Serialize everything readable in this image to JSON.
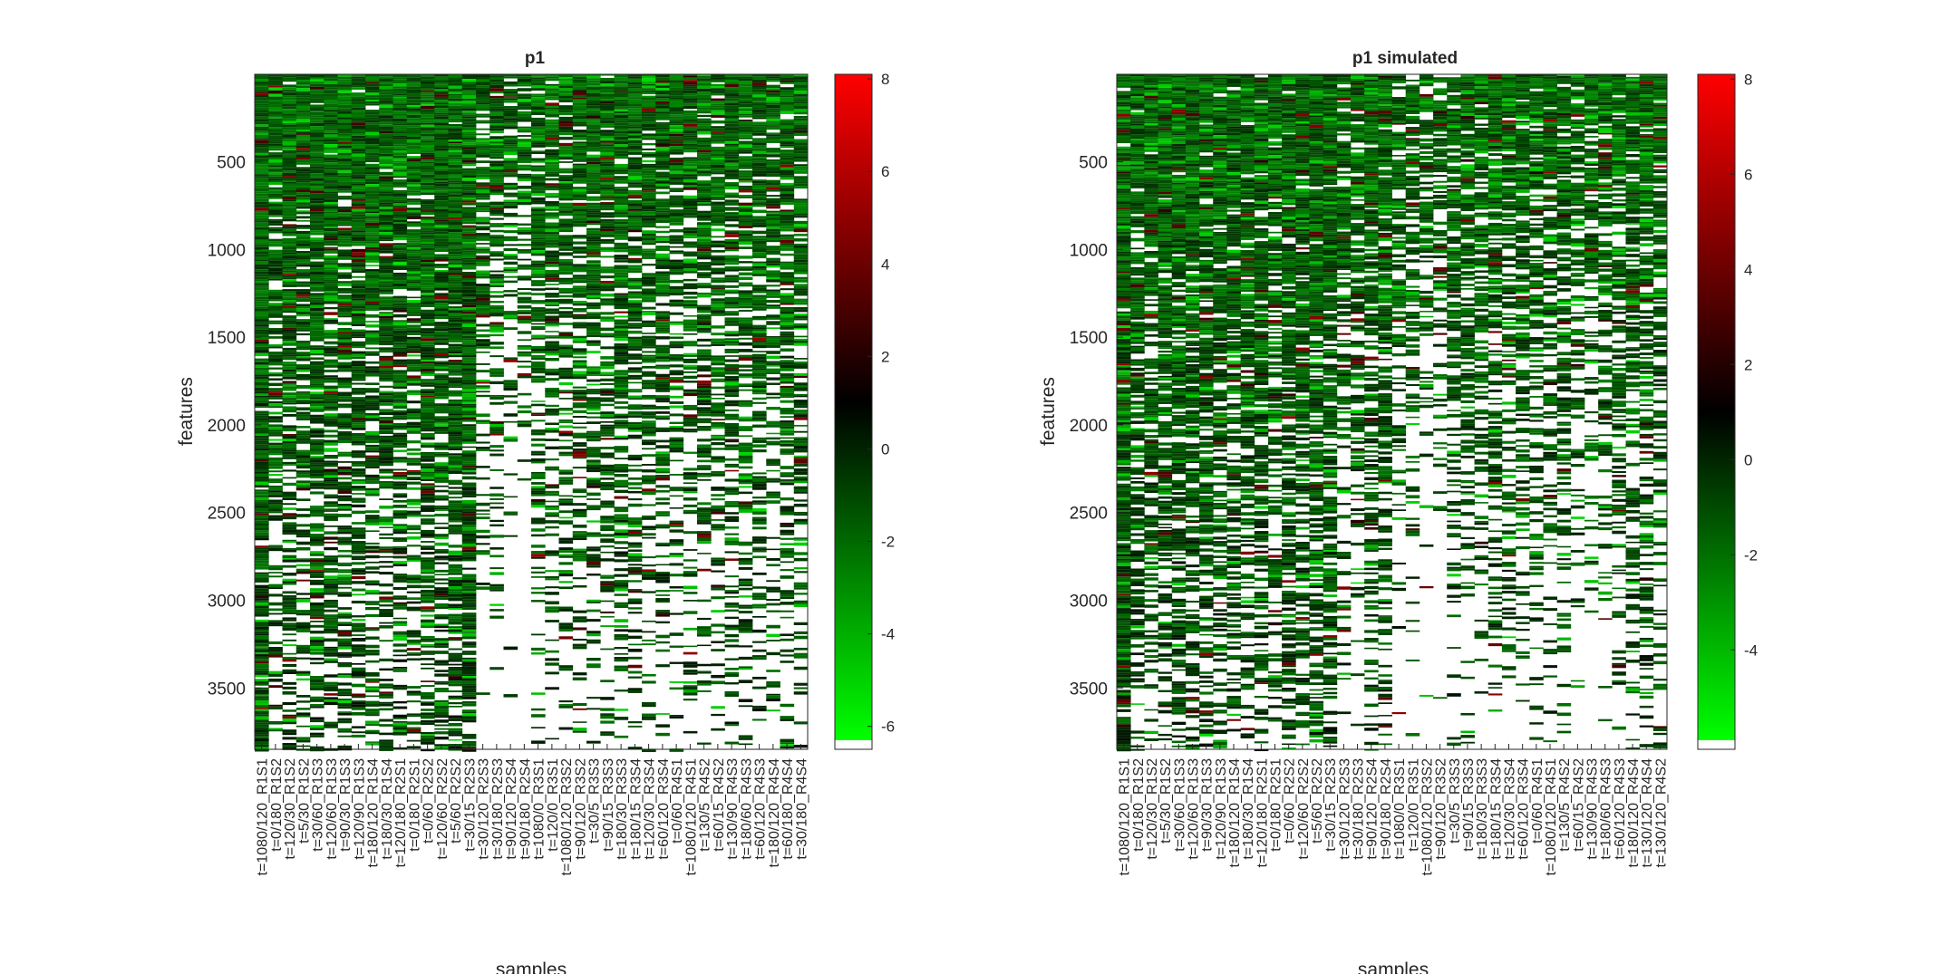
{
  "chart_data": [
    {
      "type": "heatmap",
      "title": "p1",
      "xlabel": "samples",
      "ylabel": "features",
      "y_ticks": [
        500,
        1000,
        1500,
        2000,
        2500,
        3000,
        3500
      ],
      "ylim": [
        1,
        3850
      ],
      "colorbar": {
        "ticks": [
          8,
          6,
          4,
          2,
          0,
          -2,
          -4,
          -6
        ],
        "range": [
          -6.3,
          8.1
        ],
        "colormap": [
          "#00ff00",
          "#000000",
          "#ff0000"
        ]
      },
      "missing_color": "#ffffff",
      "column_density_profile": [
        0.9,
        0.55,
        0.62,
        0.55,
        0.66,
        0.62,
        0.6,
        0.64,
        0.58,
        0.62,
        0.6,
        0.55,
        0.68,
        0.65,
        0.72,
        0.82,
        0.3,
        0.3,
        0.16,
        0.16,
        0.4,
        0.4,
        0.42,
        0.44,
        0.46,
        0.44,
        0.48,
        0.46,
        0.42,
        0.45,
        0.42,
        0.4,
        0.48,
        0.46,
        0.5,
        0.42,
        0.45,
        0.4,
        0.48,
        0.44
      ],
      "samples": [
        "t=1080/120_R1S1",
        "t=0/180_R1S2",
        "t=120/30_R1S2",
        "t=5/30_R1S2",
        "t=30/60_R1S3",
        "t=120/60_R1S3",
        "t=90/30_R1S3",
        "t=120/90_R1S3",
        "t=180/120_R1S4",
        "t=180/30_R1S4",
        "t=120/180_R2S1",
        "t=0/180_R2S1",
        "t=0/60_R2S2",
        "t=120/60_R2S2",
        "t=5/60_R2S2",
        "t=30/15_R2S3",
        "t=30/120_R2S3",
        "t=30/180_R2S3",
        "t=90/120_R2S4",
        "t=90/180_R2S4",
        "t=1080/0_R3S1",
        "t=120/0_R3S1",
        "t=1080/120_R3S2",
        "t=90/120_R3S2",
        "t=30/5_R3S3",
        "t=90/15_R3S3",
        "t=180/30_R3S3",
        "t=180/15_R3S4",
        "t=120/30_R3S4",
        "t=60/120_R3S4",
        "t=0/60_R4S1",
        "t=1080/120_R4S1",
        "t=130/5_R4S2",
        "t=60/15_R4S2",
        "t=130/90_R4S3",
        "t=180/60_R4S3",
        "t=60/120_R4S3",
        "t=180/120_R4S4",
        "t=60/180_R4S4",
        "t=30/180_R4S4"
      ]
    },
    {
      "type": "heatmap",
      "title": "p1 simulated",
      "xlabel": "samples",
      "ylabel": "features",
      "y_ticks": [
        500,
        1000,
        1500,
        2000,
        2500,
        3000,
        3500
      ],
      "ylim": [
        1,
        3850
      ],
      "colorbar": {
        "ticks": [
          8,
          6,
          4,
          2,
          0,
          -2,
          -4
        ],
        "range": [
          -5.9,
          8.1
        ],
        "colormap": [
          "#00ff00",
          "#000000",
          "#ff0000"
        ]
      },
      "missing_color": "#ffffff",
      "column_density_profile": [
        0.9,
        0.58,
        0.6,
        0.58,
        0.62,
        0.64,
        0.6,
        0.62,
        0.6,
        0.58,
        0.6,
        0.5,
        0.62,
        0.6,
        0.66,
        0.7,
        0.4,
        0.4,
        0.58,
        0.58,
        0.3,
        0.3,
        0.16,
        0.16,
        0.4,
        0.42,
        0.38,
        0.44,
        0.42,
        0.4,
        0.42,
        0.4,
        0.44,
        0.3,
        0.3,
        0.34,
        0.42,
        0.5,
        0.5,
        0.44
      ],
      "samples": [
        "t=1080/120_R1S1",
        "t=0/180_R1S2",
        "t=120/30_R1S2",
        "t=5/30_R1S2",
        "t=30/60_R1S3",
        "t=120/60_R1S3",
        "t=90/30_R1S3",
        "t=120/90_R1S3",
        "t=180/120_R1S4",
        "t=180/30_R1S4",
        "t=120/180_R2S1",
        "t=0/180_R2S1",
        "t=0/60_R2S2",
        "t=120/60_R2S2",
        "t=5/60_R2S2",
        "t=30/15_R2S3",
        "t=30/120_R2S3",
        "t=30/180_R2S3",
        "t=90/120_R2S4",
        "t=90/180_R2S4",
        "t=1080/0_R3S1",
        "t=120/0_R3S1",
        "t=1080/120_R3S2",
        "t=90/120_R3S2",
        "t=30/5_R3S3",
        "t=90/15_R3S3",
        "t=180/30_R3S3",
        "t=180/15_R3S4",
        "t=120/30_R3S4",
        "t=60/120_R3S4",
        "t=0/60_R4S1",
        "t=1080/120_R4S1",
        "t=130/5_R4S2",
        "t=60/15_R4S2",
        "t=130/90_R4S3",
        "t=180/60_R4S3",
        "t=60/120_R4S3",
        "t=180/120_R4S4",
        "t=130/120_R4S4",
        "t=130/120_R4S2"
      ]
    }
  ]
}
